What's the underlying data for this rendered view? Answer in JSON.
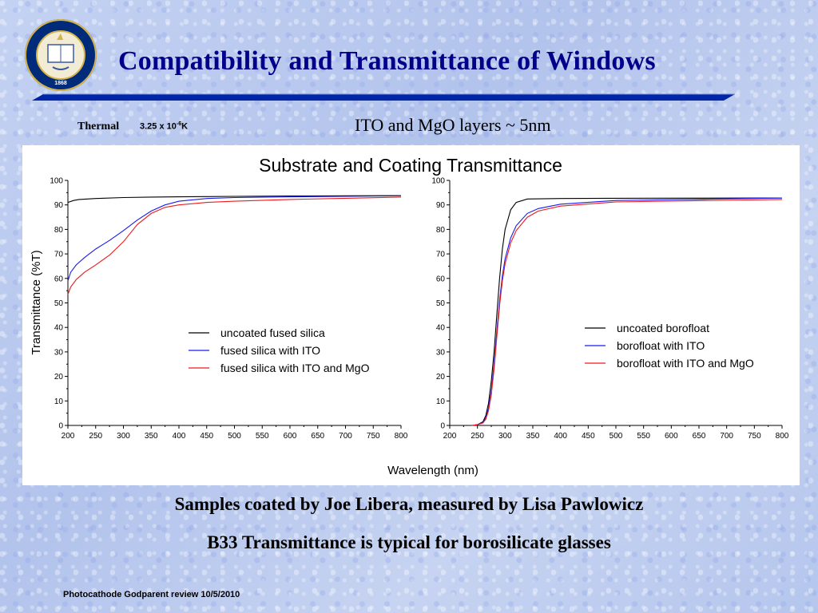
{
  "slide": {
    "title": "Compatibility and Transmittance of Windows",
    "thermal_label": "Thermal",
    "thermal_value_base": "3.25 x 10",
    "thermal_value_exp": "-6",
    "thermal_value_unit": "K",
    "layers_text": "ITO and MgO layers ~ 5nm",
    "caption_1": "Samples coated by Joe Libera, measured by Lisa Pawlowicz",
    "caption_2": "B33 Transmittance is typical for borosilicate glasses",
    "footer": "Photocathode Godparent review  10/5/2010"
  },
  "seal": {
    "motto": "THE UNIVERSITY OF CALIFORNIA BERKELEY",
    "year": "1868"
  },
  "chart_data": [
    {
      "type": "line",
      "title": "Substrate and Coating Transmittance",
      "ylabel": "Transmittance (%T)",
      "xlabel": "Wavelength (nm)",
      "xlim": [
        200,
        800
      ],
      "ylim": [
        0,
        100
      ],
      "xticks": [
        200,
        250,
        300,
        350,
        400,
        450,
        500,
        550,
        600,
        650,
        700,
        750,
        800
      ],
      "yticks": [
        0,
        10,
        20,
        30,
        40,
        50,
        60,
        70,
        80,
        90,
        100
      ],
      "legend_position": "lower-right",
      "series": [
        {
          "name": "uncoated fused silica",
          "color": "#000000",
          "x": [
            200,
            210,
            220,
            250,
            300,
            350,
            400,
            450,
            500,
            600,
            700,
            800
          ],
          "y": [
            91,
            91.8,
            92.2,
            92.6,
            93,
            93.2,
            93.3,
            93.4,
            93.5,
            93.6,
            93.7,
            93.8
          ]
        },
        {
          "name": "fused silica with ITO",
          "color": "#1a1aee",
          "x": [
            200,
            205,
            215,
            230,
            250,
            275,
            300,
            325,
            350,
            375,
            400,
            450,
            500,
            600,
            700,
            800
          ],
          "y": [
            59,
            62.5,
            65.5,
            68.5,
            72,
            75.5,
            79.5,
            83.8,
            87.5,
            90,
            91.5,
            92.6,
            93,
            93.3,
            93.5,
            93.7
          ]
        },
        {
          "name": "fused silica with ITO and MgO",
          "color": "#ee1a1a",
          "x": [
            200,
            205,
            215,
            230,
            250,
            275,
            300,
            325,
            350,
            375,
            400,
            450,
            500,
            600,
            700,
            800
          ],
          "y": [
            53.5,
            56.5,
            59.5,
            62.5,
            65.5,
            69.5,
            75,
            82,
            86.5,
            89,
            90,
            91,
            91.5,
            92.2,
            92.7,
            93.2
          ]
        }
      ]
    },
    {
      "type": "line",
      "title": "",
      "ylabel": "",
      "xlabel": "Wavelength (nm)",
      "xlim": [
        200,
        800
      ],
      "ylim": [
        0,
        100
      ],
      "xticks": [
        200,
        250,
        300,
        350,
        400,
        450,
        500,
        550,
        600,
        650,
        700,
        750,
        800
      ],
      "yticks": [
        0,
        10,
        20,
        30,
        40,
        50,
        60,
        70,
        80,
        90,
        100
      ],
      "legend_position": "lower-right",
      "series": [
        {
          "name": "uncoated borofloat",
          "color": "#000000",
          "x": [
            240,
            250,
            260,
            265,
            270,
            275,
            280,
            285,
            290,
            295,
            300,
            310,
            320,
            340,
            400,
            500,
            800
          ],
          "y": [
            0,
            0.3,
            1.5,
            4,
            9,
            18,
            30,
            45,
            60,
            72,
            80,
            88,
            91,
            92.4,
            92.6,
            92.7,
            92.8
          ]
        },
        {
          "name": "borofloat with ITO",
          "color": "#1a1aee",
          "x": [
            240,
            250,
            260,
            265,
            270,
            275,
            280,
            285,
            290,
            295,
            300,
            310,
            320,
            340,
            360,
            400,
            500,
            800
          ],
          "y": [
            0,
            0.3,
            1.2,
            3,
            7,
            14,
            25,
            38,
            51,
            61,
            68,
            76.5,
            81.5,
            86.5,
            88.5,
            90.3,
            91.8,
            92.8
          ]
        },
        {
          "name": "borofloat with ITO and MgO",
          "color": "#ee1a1a",
          "x": [
            240,
            250,
            260,
            265,
            270,
            275,
            280,
            285,
            290,
            295,
            300,
            310,
            320,
            340,
            360,
            400,
            500,
            800
          ],
          "y": [
            0,
            0.3,
            1,
            2.5,
            6,
            12.5,
            23,
            36,
            49,
            59,
            66,
            74.5,
            79.5,
            85,
            87.5,
            89.5,
            91.2,
            92.2
          ]
        }
      ]
    }
  ]
}
